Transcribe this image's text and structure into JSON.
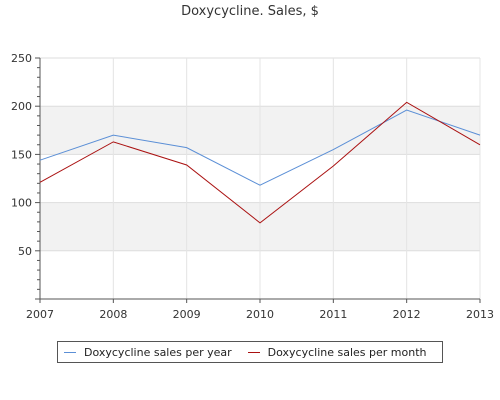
{
  "chart_data": {
    "type": "line",
    "title": "Doxycycline. Sales, $",
    "xlabel": "",
    "ylabel": "",
    "x": [
      "2007",
      "2008",
      "2009",
      "2010",
      "2011",
      "2012",
      "2013"
    ],
    "ylim": [
      0,
      250
    ],
    "yticks": [
      50,
      100,
      150,
      200,
      250
    ],
    "grid": true,
    "banded_background": true,
    "legend_position": "bottom",
    "series": [
      {
        "name": "Doxycycline sales per year",
        "color": "#5b8fd6",
        "values": [
          144,
          170,
          157,
          118,
          155,
          196,
          170
        ]
      },
      {
        "name": "Doxycycline sales per month",
        "color": "#aa1111",
        "values": [
          121,
          163,
          139,
          79,
          138,
          204,
          160
        ]
      }
    ]
  }
}
